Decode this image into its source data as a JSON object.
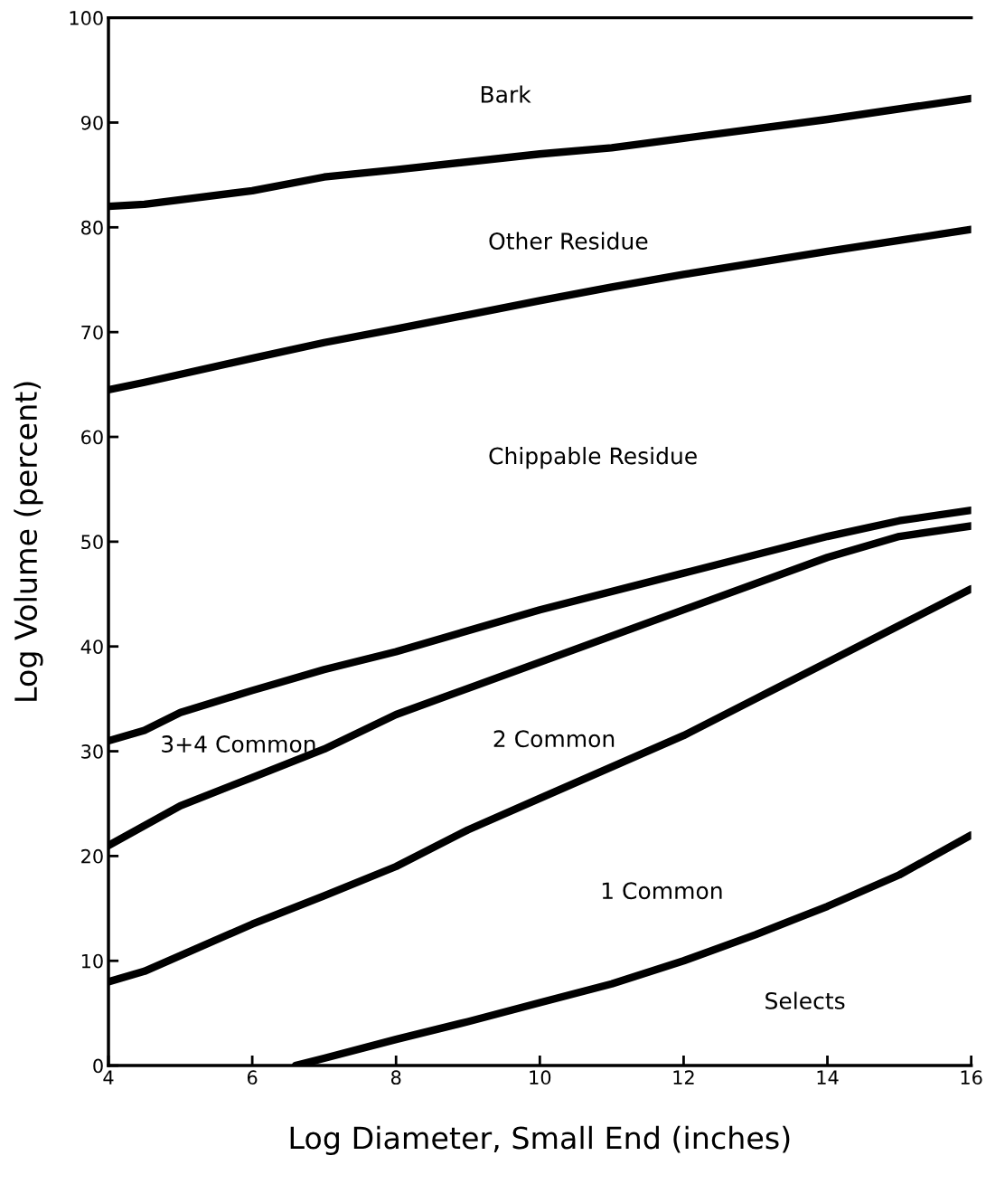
{
  "chart_data": {
    "type": "line",
    "xlabel": "Log Diameter, Small End (inches)",
    "ylabel": "Log Volume (percent)",
    "xlim": [
      4,
      16
    ],
    "xticks": [
      4,
      6,
      8,
      10,
      12,
      14,
      16
    ],
    "ylim": [
      0,
      100
    ],
    "yticks": [
      0,
      10,
      20,
      30,
      40,
      50,
      60,
      70,
      80,
      90,
      100
    ],
    "grid": false,
    "marker": "none",
    "line_style": "solid",
    "series": [
      {
        "color": "#000000",
        "x": [
          4,
          4.5,
          6,
          7,
          8,
          10,
          11,
          12,
          14,
          16
        ],
        "values": [
          82,
          82.2,
          83.5,
          84.8,
          85.5,
          87,
          87.6,
          88.5,
          90.3,
          92.3
        ]
      },
      {
        "color": "#000000",
        "x": [
          4,
          4.5,
          6,
          7,
          8,
          10,
          11,
          12,
          14,
          16
        ],
        "values": [
          64.5,
          65.2,
          67.5,
          69,
          70.3,
          73,
          74.3,
          75.5,
          77.7,
          79.8
        ]
      },
      {
        "color": "#000000",
        "x": [
          4,
          4.5,
          5,
          6,
          7,
          8,
          10,
          12,
          14,
          15,
          16
        ],
        "values": [
          31,
          32,
          33.7,
          35.8,
          37.8,
          39.5,
          43.5,
          47,
          50.5,
          52,
          53
        ]
      },
      {
        "color": "#000000",
        "x": [
          4,
          5,
          6,
          7,
          8,
          10,
          12,
          14,
          15,
          16
        ],
        "values": [
          21,
          24.8,
          27.5,
          30.2,
          33.5,
          38.5,
          43.5,
          48.5,
          50.5,
          51.5
        ]
      },
      {
        "color": "#000000",
        "x": [
          4,
          4.5,
          6,
          7,
          8,
          9,
          10,
          12,
          13,
          14,
          15,
          16
        ],
        "values": [
          8,
          9,
          13.5,
          16.2,
          19,
          22.5,
          25.5,
          31.5,
          35,
          38.5,
          42,
          45.5
        ]
      },
      {
        "color": "#000000",
        "x": [
          6.6,
          7,
          8,
          9,
          10,
          11,
          12,
          13,
          14,
          15,
          16
        ],
        "values": [
          0,
          0.7,
          2.5,
          4.2,
          6,
          7.8,
          10,
          12.5,
          15.2,
          18.2,
          22
        ]
      }
    ],
    "annotations": [
      "Bark",
      "Other Residue",
      "Chippable Residue",
      "3+4 Common",
      "2 Common",
      "1 Common",
      "Selects"
    ]
  }
}
